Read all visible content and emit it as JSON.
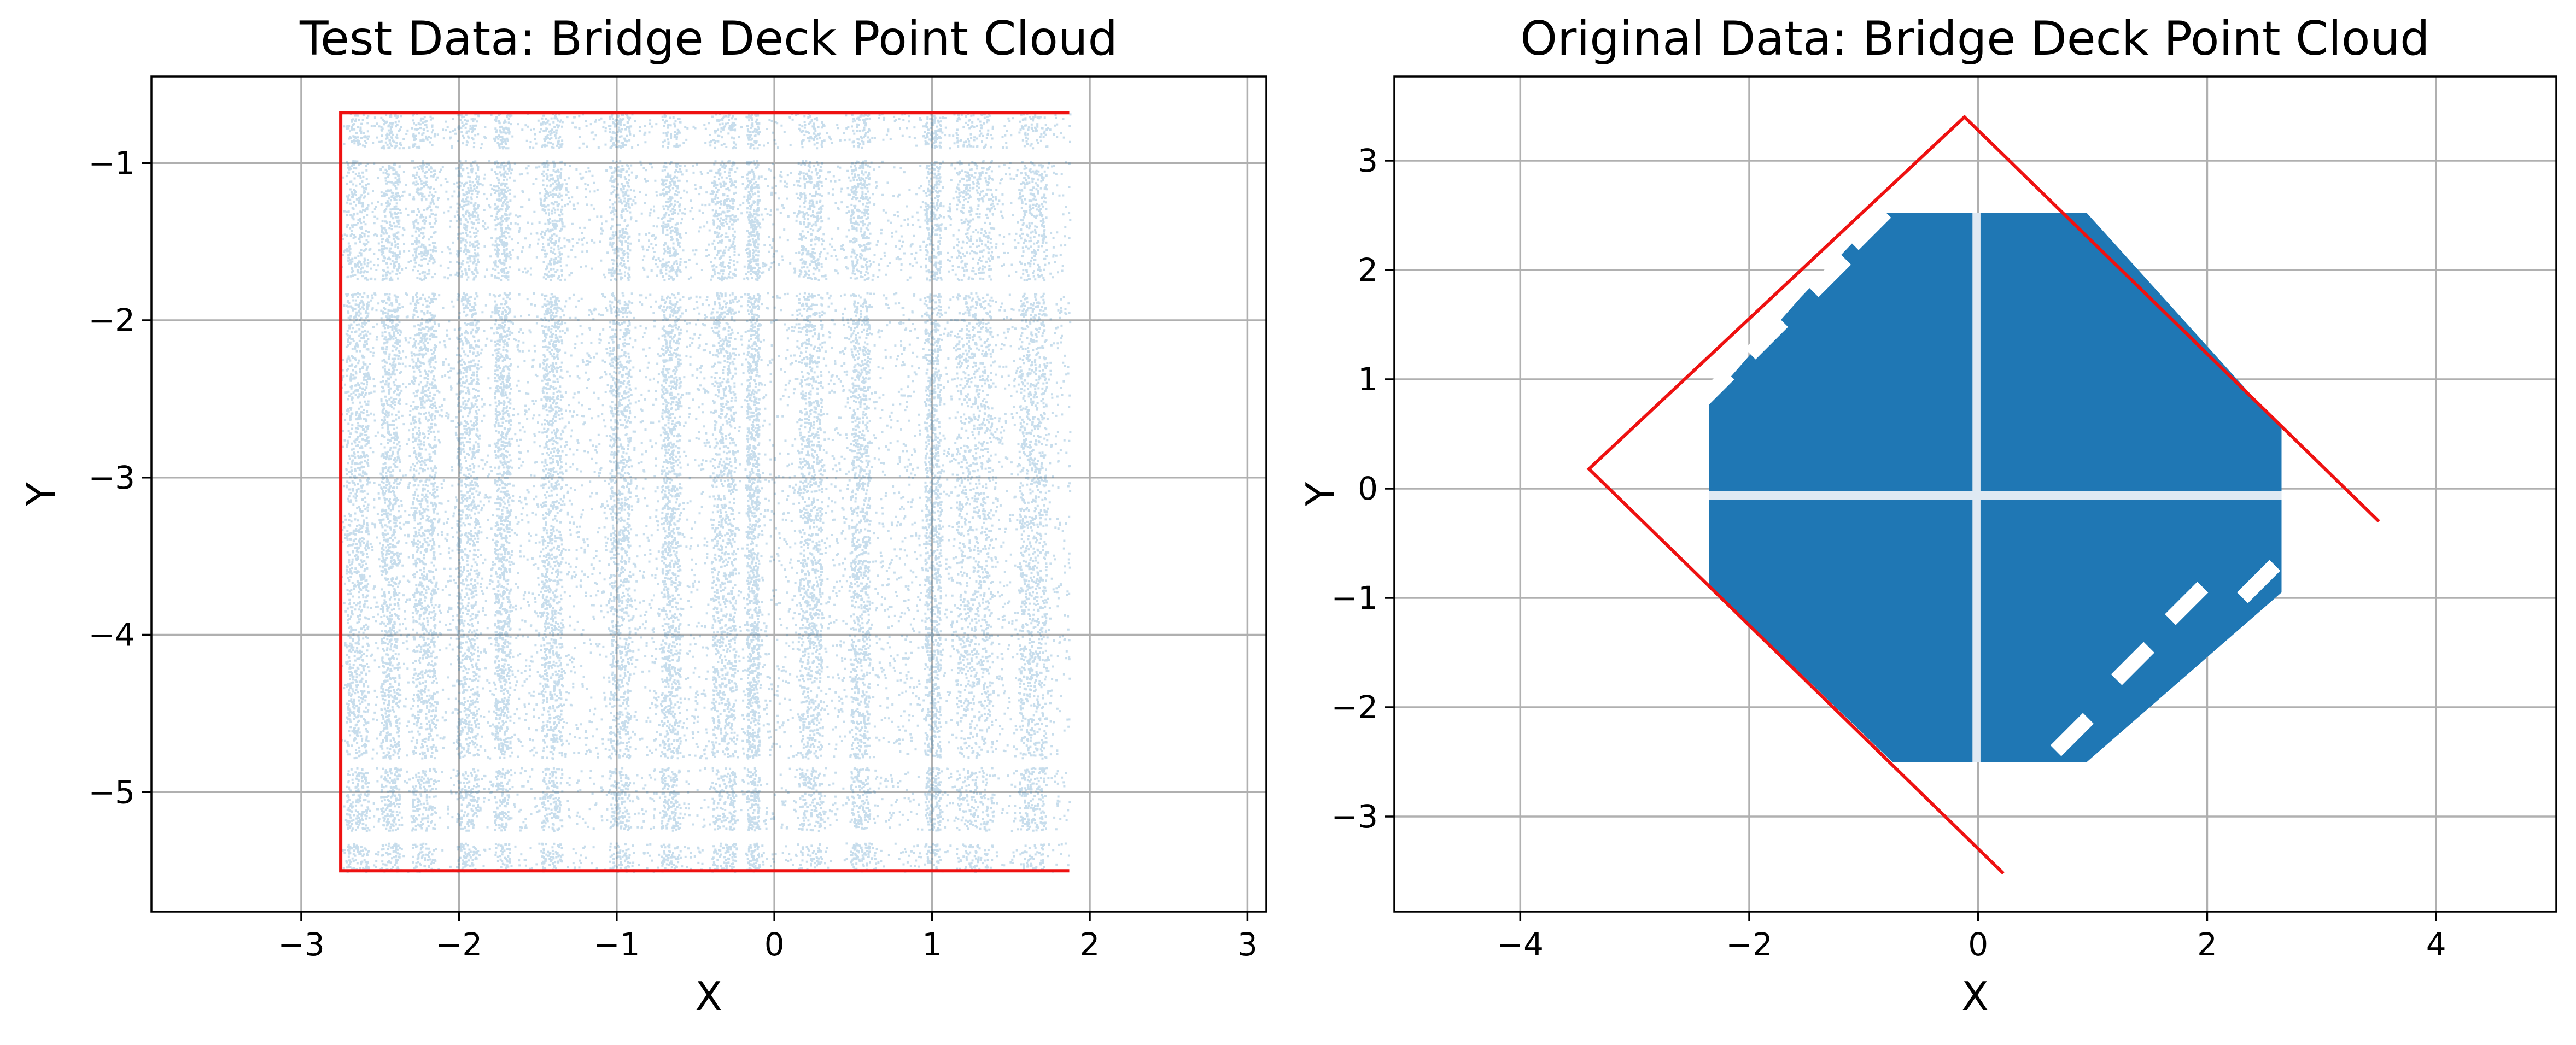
{
  "chart_data": [
    {
      "type": "scatter",
      "title": "Test Data: Bridge Deck Point Cloud",
      "xlabel": "X",
      "ylabel": "Y",
      "xlim": [
        -3.95,
        3.12
      ],
      "ylim": [
        -5.76,
        -0.45
      ],
      "xticks": [
        -3,
        -2,
        -1,
        0,
        1,
        2,
        3
      ],
      "yticks": [
        -5,
        -4,
        -3,
        -2,
        -1
      ],
      "xtick_labels": [
        "−3",
        "−2",
        "−1",
        "0",
        "1",
        "2",
        "3"
      ],
      "ytick_labels": [
        "−5",
        "−4",
        "−3",
        "−2",
        "−1"
      ],
      "grid": true,
      "point_color": "#1f77b4",
      "point_alpha": 0.25,
      "point_region": {
        "x": [
          -2.75,
          1.87
        ],
        "y": [
          -5.5,
          -0.68
        ]
      },
      "bands_x": [
        [
          -2.72,
          -2.58
        ],
        [
          -2.5,
          -2.38
        ],
        [
          -2.3,
          -2.15
        ],
        [
          -2.02,
          -1.88
        ],
        [
          -1.78,
          -1.68
        ],
        [
          -1.48,
          -1.35
        ],
        [
          -1.05,
          -0.92
        ],
        [
          -0.72,
          -0.6
        ],
        [
          -0.4,
          -0.25
        ],
        [
          -0.18,
          -0.1
        ],
        [
          0.15,
          0.3
        ],
        [
          0.48,
          0.6
        ],
        [
          0.95,
          1.05
        ],
        [
          1.15,
          1.38
        ],
        [
          1.55,
          1.72
        ]
      ],
      "gaps_y": [
        [
          -0.98,
          -0.9
        ],
        [
          -1.82,
          -1.74
        ],
        [
          -4.84,
          -4.78
        ],
        [
          -5.32,
          -5.24
        ]
      ],
      "boundary": {
        "color": "#ee1111",
        "points": [
          [
            1.87,
            -0.68
          ],
          [
            -2.75,
            -0.68
          ],
          [
            -2.75,
            -5.5
          ],
          [
            1.87,
            -5.5
          ]
        ]
      }
    },
    {
      "type": "scatter",
      "title": "Original Data: Bridge Deck Point Cloud",
      "xlabel": "X",
      "ylabel": "Y",
      "xlim": [
        -5.1,
        5.05
      ],
      "ylim": [
        -3.87,
        3.77
      ],
      "xticks": [
        -4,
        -2,
        0,
        2,
        4
      ],
      "yticks": [
        -3,
        -2,
        -1,
        0,
        1,
        2,
        3
      ],
      "xtick_labels": [
        "−4",
        "−2",
        "0",
        "2",
        "4"
      ],
      "ytick_labels": [
        "−3",
        "−2",
        "−1",
        "0",
        "1",
        "2",
        "3"
      ],
      "grid": true,
      "point_color": "#1f77b4",
      "point_polygon": [
        [
          -0.85,
          2.52
        ],
        [
          0.95,
          2.52
        ],
        [
          2.65,
          0.55
        ],
        [
          2.65,
          -0.95
        ],
        [
          0.95,
          -2.5
        ],
        [
          -0.75,
          -2.5
        ],
        [
          -2.35,
          -0.88
        ],
        [
          -2.35,
          0.8
        ],
        [
          -1.55,
          1.75
        ]
      ],
      "gaps_y": [
        [
          -0.1,
          -0.02
        ]
      ],
      "gaps_x": [
        [
          -0.05,
          0.02
        ]
      ],
      "notches": [
        [
          -0.95,
          2.38
        ],
        [
          -1.3,
          1.95
        ],
        [
          -1.85,
          1.38
        ],
        [
          -2.32,
          0.9
        ],
        [
          1.35,
          -1.6
        ],
        [
          1.82,
          -1.05
        ],
        [
          2.45,
          -0.85
        ],
        [
          0.82,
          -2.25
        ]
      ],
      "boundary": {
        "color": "#ee1111",
        "points": [
          [
            0.22,
            -3.52
          ],
          [
            -3.4,
            0.18
          ],
          [
            -0.12,
            3.4
          ],
          [
            3.5,
            -0.3
          ]
        ]
      }
    }
  ]
}
